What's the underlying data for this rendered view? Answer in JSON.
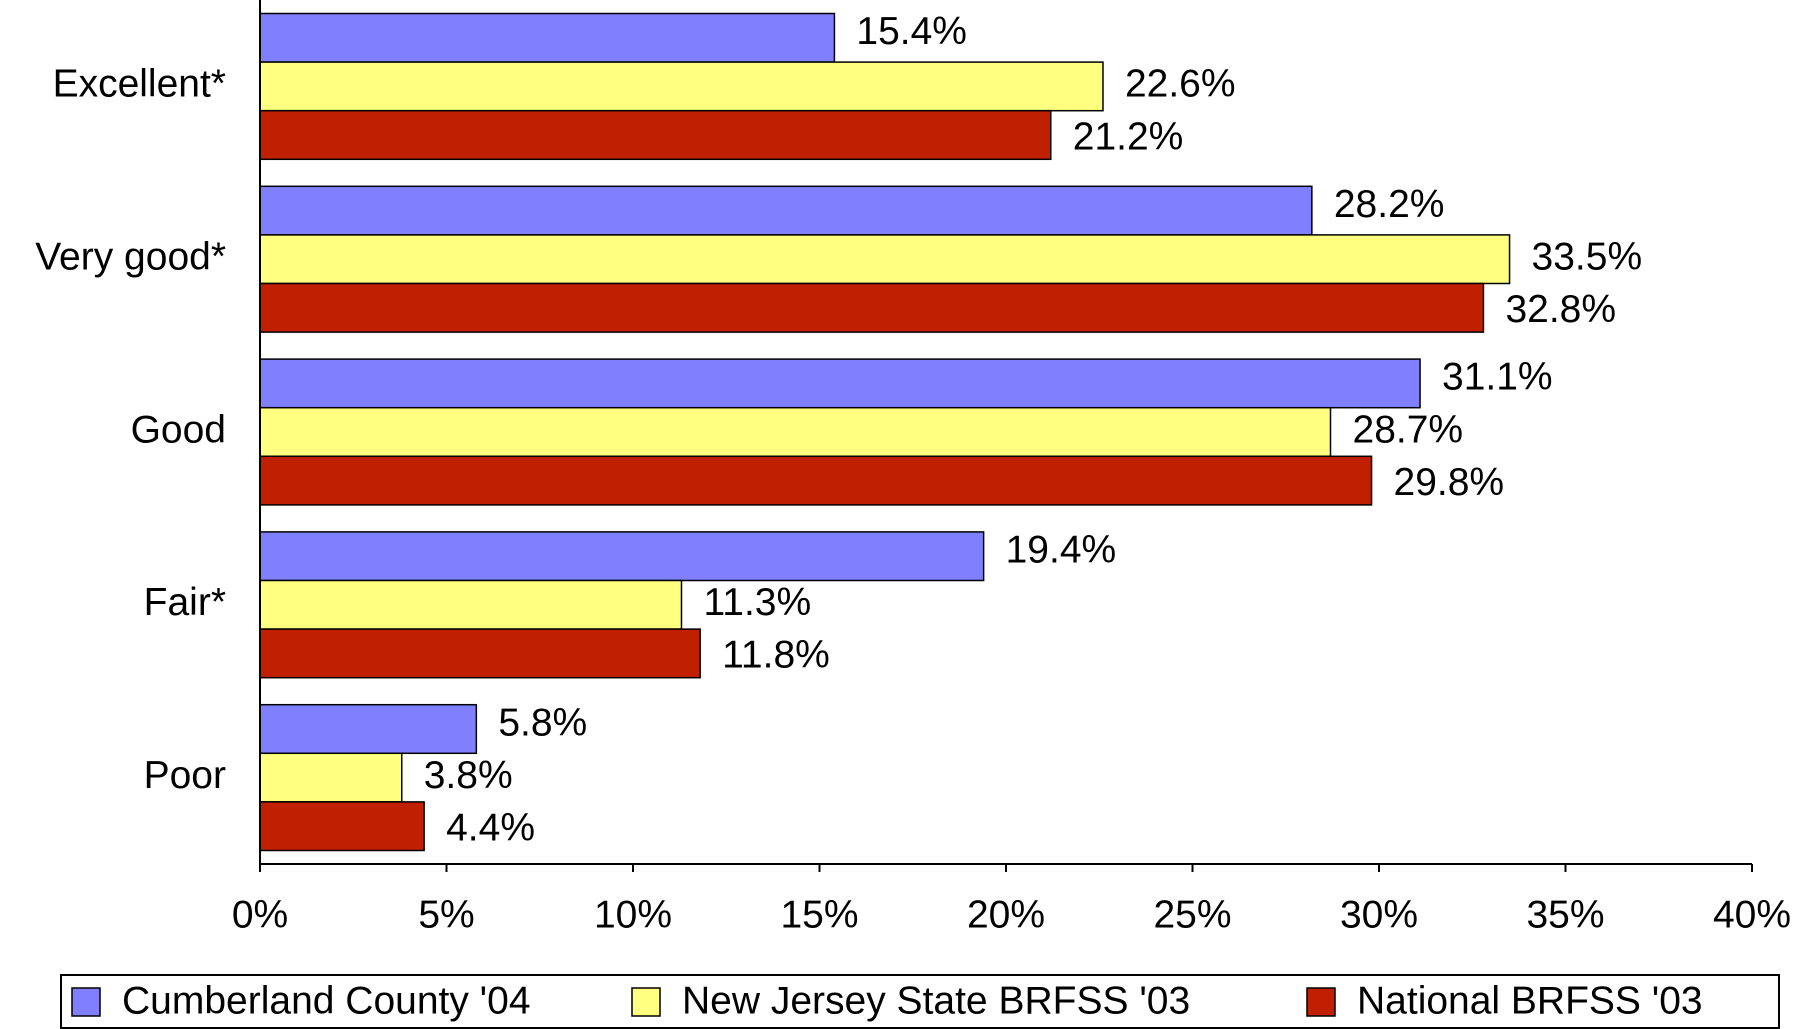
{
  "chart_data": {
    "type": "bar",
    "orientation": "horizontal",
    "categories": [
      "Excellent*",
      "Very good*",
      "Good",
      "Fair*",
      "Poor"
    ],
    "series": [
      {
        "name": "Cumberland County '04",
        "color": "#8080ff",
        "values": [
          15.4,
          28.2,
          31.1,
          19.4,
          5.8
        ],
        "value_labels": [
          "15.4%",
          "28.2%",
          "31.1%",
          "19.4%",
          "5.8%"
        ]
      },
      {
        "name": "New Jersey State BRFSS '03",
        "color": "#ffff80",
        "values": [
          22.6,
          33.5,
          28.7,
          11.3,
          3.8
        ],
        "value_labels": [
          "22.6%",
          "33.5%",
          "28.7%",
          "11.3%",
          "3.8%"
        ]
      },
      {
        "name": "National BRFSS '03",
        "color": "#c02000",
        "values": [
          21.2,
          32.8,
          29.8,
          11.8,
          4.4
        ],
        "value_labels": [
          "21.2%",
          "32.8%",
          "29.8%",
          "11.8%",
          "4.4%"
        ]
      }
    ],
    "xlim": [
      0,
      40
    ],
    "xticks": [
      {
        "value": 0,
        "label": "0%"
      },
      {
        "value": 5,
        "label": "5%"
      },
      {
        "value": 10,
        "label": "10%"
      },
      {
        "value": 15,
        "label": "15%"
      },
      {
        "value": 20,
        "label": "20%"
      },
      {
        "value": 25,
        "label": "25%"
      },
      {
        "value": 30,
        "label": "30%"
      },
      {
        "value": 35,
        "label": "35%"
      },
      {
        "value": 40,
        "label": "40%"
      }
    ],
    "legend": "bottom"
  }
}
